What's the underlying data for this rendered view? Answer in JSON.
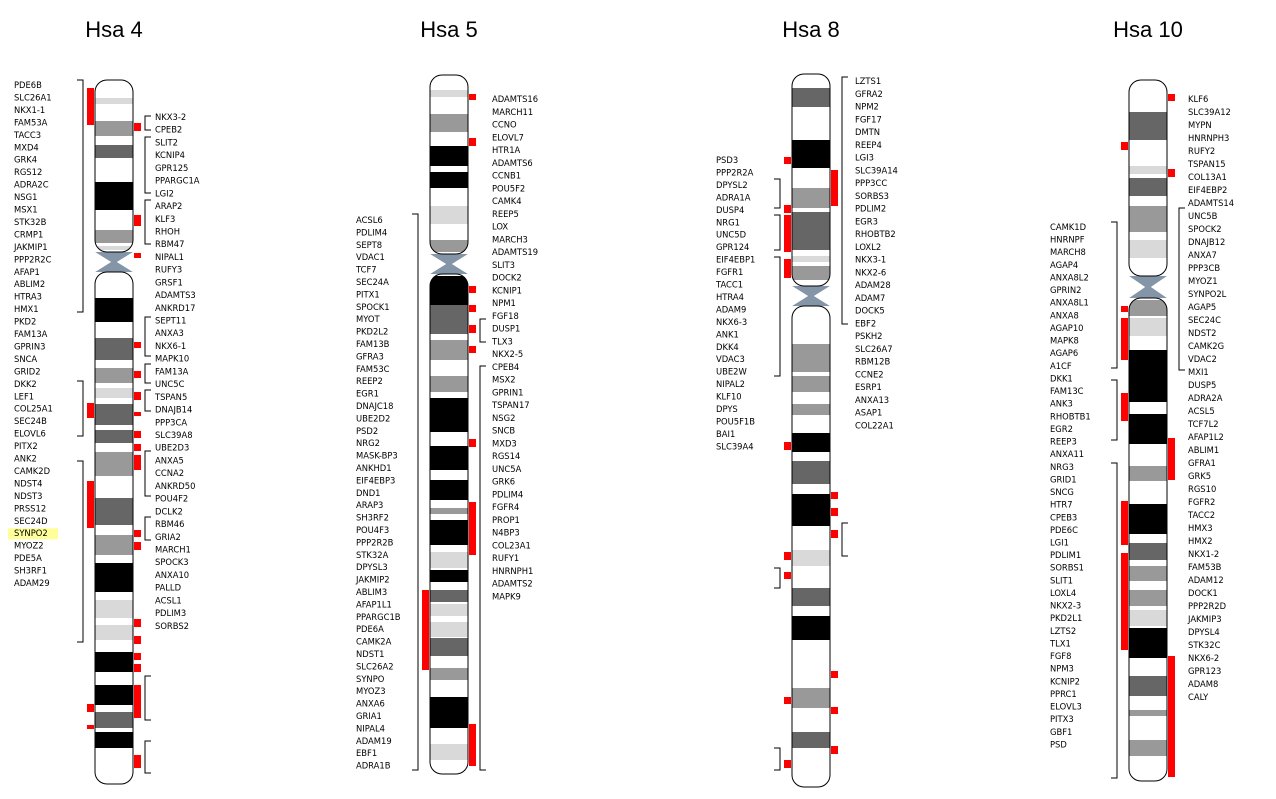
{
  "colors": {
    "mark": "#ff0000",
    "band_black": "#000000",
    "band_dark": "#666666",
    "band_mid": "#999999",
    "band_light": "#d9d9d9",
    "centromere": "#8395a7",
    "highlight": "#ffff99"
  },
  "chromosomes": [
    {
      "title": "Hsa 4",
      "left_genes": [
        "PDE6B",
        "SLC26A1",
        "NKX1-1",
        "FAM53A",
        "TACC3",
        "MXD4",
        "GRK4",
        "RGS12",
        "ADRA2C",
        "NSG1",
        "MSX1",
        "STK32B",
        "CRMP1",
        "JAKMIP1",
        "PPP2R2C",
        "AFAP1",
        "ABLIM2",
        "HTRA3",
        "HMX1",
        "PKD2",
        "FAM13A",
        "GPRIN3",
        "SNCA",
        "GRID2",
        "DKK2",
        "LEF1",
        "COL25A1",
        "SEC24B",
        "ELOVL6",
        "PITX2",
        "ANK2",
        "CAMK2D",
        "NDST4",
        "NDST3",
        "PRSS12",
        "SEC24D",
        "SYNPO2",
        "MYOZ2",
        "PDE5A",
        "SH3RF1",
        "ADAM29"
      ],
      "right_genes": [
        "NKX3-2",
        "CPEB2",
        "SLIT2",
        "KCNIP4",
        "GPR125",
        "PPARGC1A",
        "LGI2",
        "ARAP2",
        "KLF3",
        "RHOH",
        "RBM47",
        "NIPAL1",
        "RUFY3",
        "GRSF1",
        "ADAMTS3",
        "ANKRD17",
        "SEPT11",
        "ANXA3",
        "NKX6-1",
        "MAPK10",
        "FAM13A",
        "UNC5C",
        "TSPAN5",
        "DNAJB14",
        "PPP3CA",
        "SLC39A8",
        "UBE2D3",
        "ANXA5",
        "CCNA2",
        "ANKRD50",
        "POU4F2",
        "DCLK2",
        "RBM46",
        "GRIA2",
        "MARCH1",
        "SPOCK3",
        "ANXA10",
        "PALLD",
        "ACSL1",
        "PDLIM3",
        "SORBS2"
      ],
      "highlighted": "SYNPO2"
    },
    {
      "title": "Hsa 5",
      "left_genes": [
        "ACSL6",
        "PDLIM4",
        "SEPT8",
        "VDAC1",
        "TCF7",
        "SEC24A",
        "PITX1",
        "SPOCK1",
        "MYOT",
        "PKD2L2",
        "FAM13B",
        "GFRA3",
        "FAM53C",
        "REEP2",
        "EGR1",
        "DNAJC18",
        "UBE2D2",
        "PSD2",
        "NRG2",
        "MASK-BP3",
        "ANKHD1",
        "EIF4EBP3",
        "DND1",
        "ARAP3",
        "SH3RF2",
        "POU4F3",
        "PPP2R2B",
        "STK32A",
        "DPYSL3",
        "JAKMIP2",
        "ABLIM3",
        "AFAP1L1",
        "PPARGC1B",
        "PDE6A",
        "CAMK2A",
        "NDST1",
        "SLC26A2",
        "SYNPO",
        "MYOZ3",
        "ANXA6",
        "GRIA1",
        "NIPAL4",
        "ADAM19",
        "EBF1",
        "ADRA1B"
      ],
      "right_genes": [
        "ADAMTS16",
        "MARCH11",
        "CCNO",
        "ELOVL7",
        "HTR1A",
        "ADAMTS6",
        "CCNB1",
        "POU5F2",
        "CAMK4",
        "REEP5",
        "LOX",
        "MARCH3",
        "ADAMTS19",
        "SLIT3",
        "DOCK2",
        "KCNIP1",
        "NPM1",
        "FGF18",
        "DUSP1",
        "TLX3",
        "NKX2-5",
        "CPEB4",
        "MSX2",
        "GPRIN1",
        "TSPAN17",
        "NSG2",
        "SNCB",
        "MXD3",
        "RGS14",
        "UNC5A",
        "GRK6",
        "PDLIM4",
        "FGFR4",
        "PROP1",
        "N4BP3",
        "COL23A1",
        "RUFY1",
        "HNRNPH1",
        "ADAMTS2",
        "MAPK9"
      ]
    },
    {
      "title": "Hsa 8",
      "left_genes": [
        "PSD3",
        "PPP2R2A",
        "DPYSL2",
        "ADRA1A",
        "DUSP4",
        "NRG1",
        "UNC5D",
        "GPR124",
        "EIF4EBP1",
        "FGFR1",
        "TACC1",
        "HTRA4",
        "ADAM9",
        "NKX6-3",
        "ANK1",
        "DKK4",
        "VDAC3",
        "UBE2W",
        "NIPAL2",
        "KLF10",
        "DPYS",
        "POU5F1B",
        "BAI1",
        "SLC39A4"
      ],
      "right_genes": [
        "LZTS1",
        "GFRA2",
        "NPM2",
        "FGF17",
        "DMTN",
        "REEP4",
        "LGI3",
        "SLC39A14",
        "PPP3CC",
        "SORBS3",
        "PDLIM2",
        "EGR3",
        "RHOBTB2",
        "LOXL2",
        "NKX3-1",
        "NKX2-6",
        "ADAM28",
        "ADAM7",
        "DOCK5",
        "EBF2",
        "PSKH2",
        "SLC26A7",
        "RBM12B",
        "CCNE2",
        "ESRP1",
        "ANXA13",
        "ASAP1",
        "COL22A1"
      ]
    },
    {
      "title": "Hsa 10",
      "left_genes": [
        "CAMK1D",
        "HNRNPF",
        "MARCH8",
        "AGAP4",
        "ANXA8L2",
        "GPRIN2",
        "ANXA8L1",
        "ANXA8",
        "AGAP10",
        "MAPK8",
        "AGAP6",
        "A1CF",
        "DKK1",
        "FAM13C",
        "ANK3",
        "RHOBTB1",
        "EGR2",
        "REEP3",
        "ANXA11",
        "NRG3",
        "GRID1",
        "SNCG",
        "HTR7",
        "CPEB3",
        "PDE6C",
        "LGI1",
        "PDLIM1",
        "SORBS1",
        "SLIT1",
        "LOXL4",
        "NKX2-3",
        "PKD2L1",
        "LZTS2",
        "TLX1",
        "FGF8",
        "NPM3",
        "KCNIP2",
        "PPRC1",
        "ELOVL3",
        "PITX3",
        "GBF1",
        "PSD"
      ],
      "right_genes": [
        "KLF6",
        "SLC39A12",
        "MYPN",
        "HNRNPH3",
        "RUFY2",
        "TSPAN15",
        "COL13A1",
        "EIF4EBP2",
        "ADAMTS14",
        "UNC5B",
        "SPOCK2",
        "DNAJB12",
        "ANXA7",
        "PPP3CB",
        "MYOZ1",
        "SYNPO2L",
        "AGAP5",
        "SEC24C",
        "NDST2",
        "CAMK2G",
        "VDAC2",
        "MXI1",
        "DUSP5",
        "ADRA2A",
        "ACSL5",
        "TCF7L2",
        "AFAP1L2",
        "ABLIM1",
        "GFRA1",
        "GRK5",
        "RGS10",
        "FGFR2",
        "TACC2",
        "HMX3",
        "HMX2",
        "NKX1-2",
        "FAM53B",
        "ADAM12",
        "DOCK1",
        "PPP2R2D",
        "JAKMIP3",
        "DPYSL4",
        "STK32C",
        "NKX6-2",
        "GPR123",
        "ADAM8",
        "CALY"
      ]
    }
  ]
}
